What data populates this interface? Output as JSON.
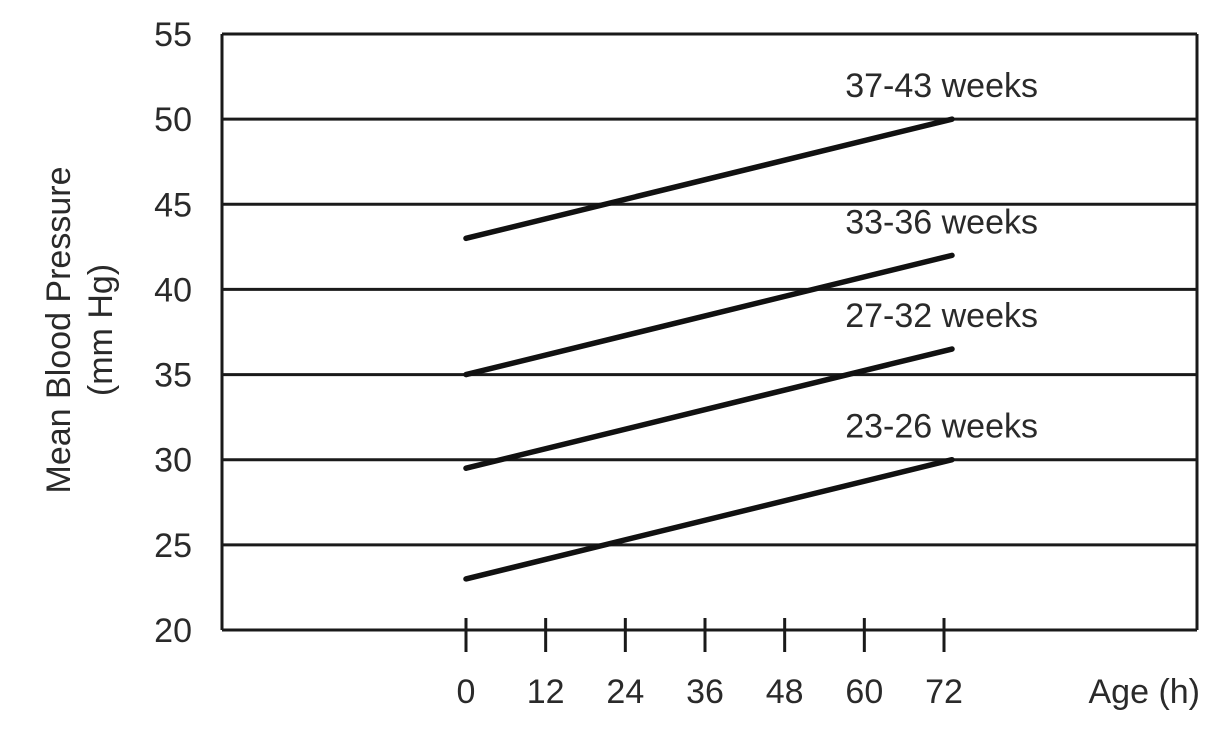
{
  "chart_data": {
    "type": "line",
    "ylabel_line1": "Mean Blood Pressure",
    "ylabel_line2": "(mm Hg)",
    "xlabel": "Age (h)",
    "ylim": [
      20,
      55
    ],
    "y_ticks": [
      "20",
      "25",
      "30",
      "35",
      "40",
      "45",
      "50",
      "55"
    ],
    "x_ticks": [
      "0",
      "12",
      "24",
      "36",
      "48",
      "60",
      "72"
    ],
    "x_tick_values": [
      0,
      12,
      24,
      36,
      48,
      60,
      72
    ],
    "grid": "horizontal",
    "series": [
      {
        "name": "37-43 weeks",
        "x": [
          0,
          72
        ],
        "y": [
          43,
          50
        ]
      },
      {
        "name": "33-36 weeks",
        "x": [
          0,
          72
        ],
        "y": [
          35,
          42
        ]
      },
      {
        "name": "27-32 weeks",
        "x": [
          0,
          72
        ],
        "y": [
          29.5,
          36.5
        ]
      },
      {
        "name": "23-26 weeks",
        "x": [
          0,
          72
        ],
        "y": [
          23,
          30
        ]
      }
    ],
    "colors": {
      "line": "#111111",
      "grid": "#1a1a1a",
      "text": "#2a2a2a"
    }
  }
}
